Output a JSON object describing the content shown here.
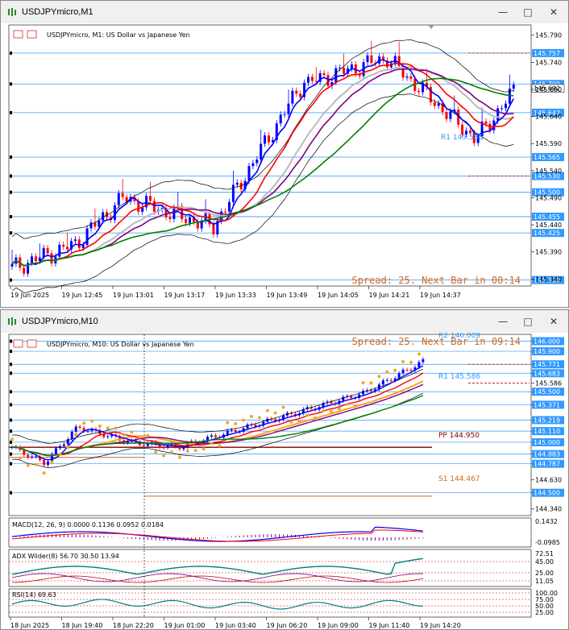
{
  "top_window": {
    "title": "USDJPYmicro,M1",
    "header": "USDJPYmicro, M1:  US Dollar vs Japanese Yen",
    "status": "Spread: 25. Next Bar in 00:14",
    "price_ticks": [
      "145.790",
      "145.740",
      "145.690",
      "145.640",
      "145.590",
      "145.540",
      "145.490",
      "145.440",
      "145.390",
      "145.340"
    ],
    "price_levels": [
      "145.757",
      "145.700",
      "145.647",
      "145.565",
      "145.530",
      "145.500",
      "145.455",
      "145.425",
      "145.338"
    ],
    "current_price": "145.692",
    "r1_label": "R1 145.586",
    "time_ticks": [
      "19 Jun 2025",
      "19 Jun 12:45",
      "19 Jun 13:01",
      "19 Jun 13:17",
      "19 Jun 13:33",
      "19 Jun 13:49",
      "19 Jun 14:05",
      "19 Jun 14:21",
      "19 Jun 14:37"
    ]
  },
  "bottom_window": {
    "title": "USDJPYmicro,M10",
    "header": "USDJPYmicro, M10:  US Dollar vs Japanese Yen",
    "status": "Spread: 25. Next Bar in 09:14",
    "r2_label": "R2 146.009",
    "r1_label": "R1 145.586",
    "pp_label": "PP 144.950",
    "s1_label": "S1 144.467",
    "price_ticks": [
      "146.000",
      "145.900",
      "145.771",
      "145.683",
      "145.586",
      "145.500",
      "145.371",
      "145.219",
      "145.110",
      "145.000",
      "144.883",
      "144.787",
      "144.630",
      "144.500",
      "144.340"
    ],
    "macd_label": "MACD(12, 26, 9) 0.0000 0.1136 0.0952 0.0184",
    "macd_ticks": [
      "0.1432",
      "-0.0985"
    ],
    "adx_label": "ADX Wilder(8) 56.70 30.50 13.94",
    "adx_ticks": [
      "72.51",
      "45.00",
      "25.00",
      "11.05"
    ],
    "rsi_label": "RSI(14) 69.63",
    "rsi_ticks": [
      "100.00",
      "75.00",
      "50.00",
      "25.00"
    ],
    "time_ticks": [
      "18 Jun 2025",
      "18 Jun 19:40",
      "18 Jun 22:20",
      "19 Jun 01:00",
      "19 Jun 03:40",
      "19 Jun 06:20",
      "19 Jun 09:00",
      "19 Jun 11:40",
      "19 Jun 14:20"
    ]
  },
  "colors": {
    "bull": "#0000ff",
    "bear": "#ff0000",
    "ma_fast": "#0000ff",
    "ma_mid": "#ff0000",
    "ma_slow": "#800080",
    "ma_long": "#008000",
    "boll": "#000000",
    "level": "#3399ff"
  }
}
